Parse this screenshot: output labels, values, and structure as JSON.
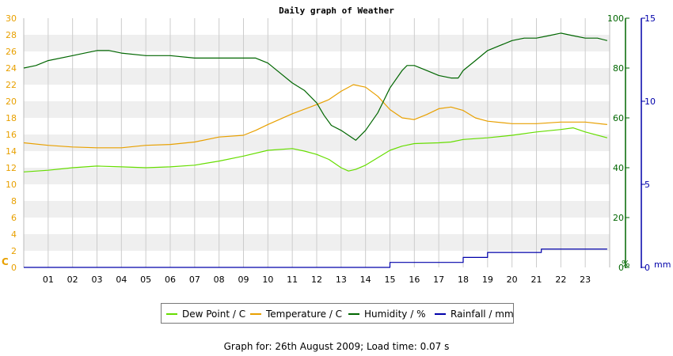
{
  "chart_data": {
    "type": "line",
    "title": "Daily graph of Weather",
    "footer": "Graph for: 26th August 2009; Load time: 0.07 s",
    "x_tick_labels": [
      "01",
      "02",
      "03",
      "04",
      "05",
      "06",
      "07",
      "08",
      "09",
      "10",
      "11",
      "12",
      "13",
      "14",
      "15",
      "16",
      "17",
      "18",
      "19",
      "20",
      "21",
      "22",
      "23"
    ],
    "xlim": [
      0,
      24
    ],
    "grid": true,
    "axes": {
      "left": {
        "unit_label": "C",
        "ticks": [
          0,
          2,
          4,
          6,
          8,
          10,
          12,
          14,
          16,
          18,
          20,
          22,
          24,
          26,
          28,
          30
        ],
        "range": [
          0,
          30
        ],
        "color": "#e8a000"
      },
      "right1": {
        "unit_label": "%",
        "ticks": [
          0,
          20,
          40,
          60,
          80,
          100
        ],
        "range": [
          0,
          100
        ],
        "color": "#006600"
      },
      "right2": {
        "unit_label": "mm",
        "ticks": [
          0,
          5,
          10,
          15
        ],
        "range": [
          0,
          15
        ],
        "color": "#0000aa"
      }
    },
    "legend_position": "bottom-center",
    "series": [
      {
        "name": "Dew Point / C",
        "axis": "left",
        "color": "#66dd00",
        "x": [
          0,
          1,
          2,
          3,
          4,
          5,
          6,
          7,
          8,
          9,
          10,
          11,
          11.5,
          12,
          12.5,
          13,
          13.3,
          13.6,
          14,
          14.5,
          15,
          15.5,
          16,
          17,
          17.5,
          18,
          19,
          20,
          21,
          22,
          22.5,
          23,
          23.9
        ],
        "y": [
          11.5,
          11.7,
          12.0,
          12.2,
          12.1,
          12.0,
          12.1,
          12.3,
          12.8,
          13.4,
          14.1,
          14.3,
          14.0,
          13.6,
          13.0,
          12.0,
          11.6,
          11.8,
          12.3,
          13.2,
          14.1,
          14.6,
          14.9,
          15.0,
          15.1,
          15.4,
          15.6,
          15.9,
          16.3,
          16.6,
          16.8,
          16.3,
          15.6
        ]
      },
      {
        "name": "Temperature / C",
        "axis": "left",
        "color": "#e8a000",
        "x": [
          0,
          1,
          2,
          3,
          4,
          5,
          6,
          7,
          8,
          9,
          9.5,
          10,
          11,
          12,
          12.5,
          13,
          13.5,
          14,
          14.5,
          15,
          15.5,
          16,
          16.5,
          17,
          17.5,
          18,
          18.5,
          19,
          20,
          21,
          22,
          23,
          23.9
        ],
        "y": [
          15.0,
          14.7,
          14.5,
          14.4,
          14.4,
          14.7,
          14.8,
          15.1,
          15.7,
          15.9,
          16.5,
          17.2,
          18.5,
          19.6,
          20.2,
          21.2,
          22.0,
          21.7,
          20.6,
          19.0,
          18.0,
          17.8,
          18.4,
          19.1,
          19.3,
          18.9,
          18.0,
          17.6,
          17.3,
          17.3,
          17.5,
          17.5,
          17.2
        ]
      },
      {
        "name": "Humidity / %",
        "axis": "right1",
        "color": "#006600",
        "x": [
          0,
          0.5,
          1,
          2,
          2.5,
          3,
          3.5,
          4,
          5,
          6,
          7,
          8,
          9,
          9.5,
          10,
          10.5,
          11,
          11.5,
          12,
          12.3,
          12.6,
          13,
          13.3,
          13.6,
          14,
          14.5,
          15,
          15.5,
          15.7,
          16,
          16.5,
          17,
          17.5,
          17.8,
          18,
          18.5,
          19,
          19.5,
          20,
          20.5,
          21,
          21.5,
          22,
          22.5,
          23,
          23.5,
          23.9
        ],
        "y": [
          80,
          81,
          83,
          85,
          86,
          87,
          87,
          86,
          85,
          85,
          84,
          84,
          84,
          84,
          82,
          78,
          74,
          71,
          66,
          61,
          57,
          55,
          53,
          51,
          55,
          62,
          72,
          79,
          81,
          81,
          79,
          77,
          76,
          76,
          79,
          83,
          87,
          89,
          91,
          92,
          92,
          93,
          94,
          93,
          92,
          92,
          91
        ]
      },
      {
        "name": "Rainfall / mm",
        "axis": "right2",
        "color": "#0000aa",
        "x": [
          0,
          15,
          15,
          18,
          18,
          19,
          19,
          21.2,
          21.2,
          23.9
        ],
        "y": [
          0,
          0,
          0.3,
          0.3,
          0.6,
          0.6,
          0.9,
          0.9,
          1.1,
          1.1
        ]
      }
    ]
  },
  "legend": [
    {
      "label": "Dew Point / C",
      "color": "#66dd00"
    },
    {
      "label": "Temperature / C",
      "color": "#e8a000"
    },
    {
      "label": "Humidity / %",
      "color": "#006600"
    },
    {
      "label": "Rainfall / mm",
      "color": "#0000aa"
    }
  ]
}
